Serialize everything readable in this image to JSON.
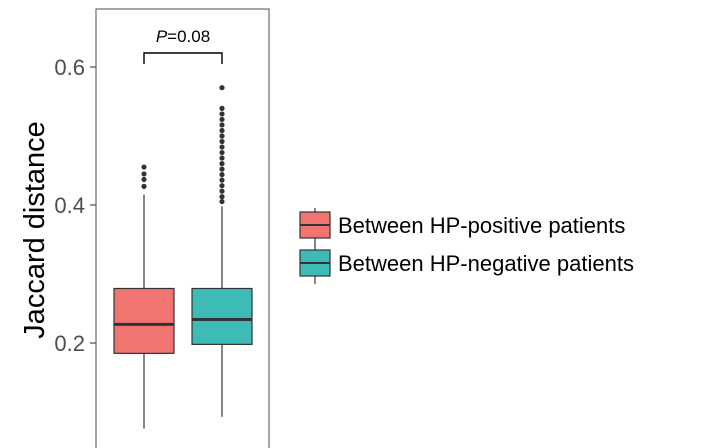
{
  "chart_data": {
    "type": "box",
    "title": "",
    "xlabel": "",
    "ylabel": "Jaccard distance",
    "ylim": [
      0.08,
      0.69
    ],
    "yticks": [
      0.2,
      0.4,
      0.6
    ],
    "ytick_labels": [
      "0.2",
      "0.4",
      "0.6"
    ],
    "grid": false,
    "legend_position": "right",
    "annotation": {
      "prefix": "P",
      "text": "=0.08"
    },
    "series": [
      {
        "name": "Between HP-positive patients",
        "color": "#F07470",
        "whisker_low": 0.076,
        "q1": 0.185,
        "median": 0.227,
        "q3": 0.279,
        "whisker_high": 0.415,
        "outliers": [
          0.427,
          0.437,
          0.445,
          0.455
        ]
      },
      {
        "name": "Between HP-negative patients",
        "color": "#3EBAB7",
        "whisker_low": 0.093,
        "q1": 0.198,
        "median": 0.234,
        "q3": 0.279,
        "whisker_high": 0.398,
        "outliers": [
          0.405,
          0.412,
          0.42,
          0.428,
          0.436,
          0.444,
          0.452,
          0.46,
          0.468,
          0.476,
          0.484,
          0.492,
          0.5,
          0.508,
          0.516,
          0.524,
          0.532,
          0.54,
          0.57
        ]
      }
    ]
  }
}
